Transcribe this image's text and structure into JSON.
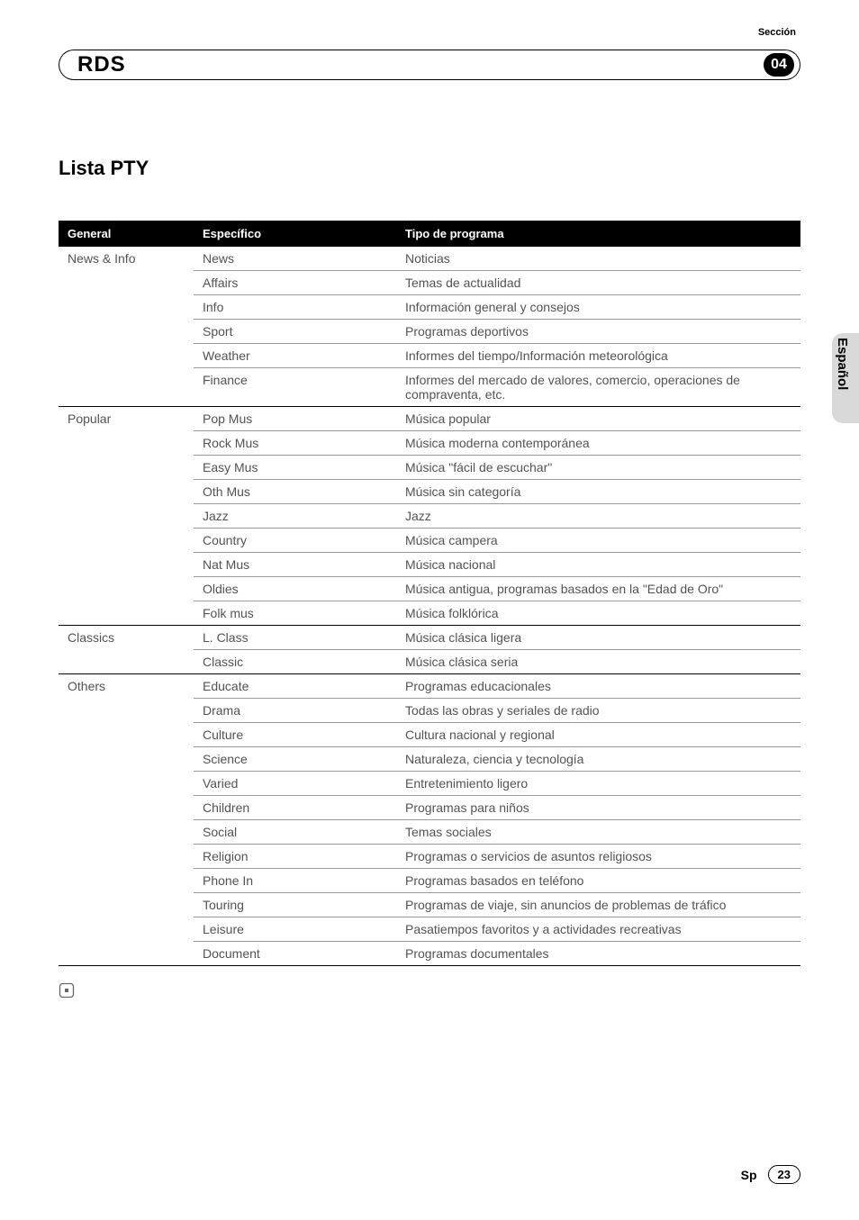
{
  "header": {
    "section_label": "Sección",
    "title": "RDS",
    "section_number": "04"
  },
  "subtitle": "Lista PTY",
  "side_language": "Español",
  "footer": {
    "lang_code": "Sp",
    "page_number": "23"
  },
  "table": {
    "columns": {
      "general": "General",
      "specific": "Específico",
      "type": "Tipo de programa"
    },
    "col_widths": {
      "general": 150,
      "specific": 225
    },
    "header_bg": "#000000",
    "header_fg": "#ffffff",
    "row_color": "#535353",
    "row_border": "#999999",
    "group_border": "#000000",
    "groups": [
      {
        "general": "News & Info",
        "rows": [
          {
            "specific": "News",
            "type": "Noticias"
          },
          {
            "specific": "Affairs",
            "type": "Temas de actualidad"
          },
          {
            "specific": "Info",
            "type": "Información general y consejos"
          },
          {
            "specific": "Sport",
            "type": "Programas deportivos"
          },
          {
            "specific": "Weather",
            "type": "Informes del tiempo/Información meteorológica"
          },
          {
            "specific": "Finance",
            "type": "Informes del mercado de valores, comercio, operaciones de compraventa, etc."
          }
        ]
      },
      {
        "general": "Popular",
        "rows": [
          {
            "specific": "Pop Mus",
            "type": "Música popular"
          },
          {
            "specific": "Rock Mus",
            "type": "Música moderna contemporánea"
          },
          {
            "specific": "Easy Mus",
            "type": "Música \"fácil de escuchar\""
          },
          {
            "specific": "Oth Mus",
            "type": "Música sin categoría"
          },
          {
            "specific": "Jazz",
            "type": "Jazz"
          },
          {
            "specific": "Country",
            "type": "Música campera"
          },
          {
            "specific": "Nat Mus",
            "type": "Música nacional"
          },
          {
            "specific": "Oldies",
            "type": "Música antigua, programas basados en la \"Edad de Oro\""
          },
          {
            "specific": "Folk mus",
            "type": "Música folklórica"
          }
        ]
      },
      {
        "general": "Classics",
        "rows": [
          {
            "specific": "L. Class",
            "type": "Música clásica ligera"
          },
          {
            "specific": "Classic",
            "type": "Música clásica seria"
          }
        ]
      },
      {
        "general": "Others",
        "rows": [
          {
            "specific": "Educate",
            "type": "Programas educacionales"
          },
          {
            "specific": "Drama",
            "type": "Todas las obras y seriales de radio"
          },
          {
            "specific": "Culture",
            "type": "Cultura nacional y regional"
          },
          {
            "specific": "Science",
            "type": "Naturaleza, ciencia y tecnología"
          },
          {
            "specific": "Varied",
            "type": "Entretenimiento ligero"
          },
          {
            "specific": "Children",
            "type": "Programas para niños"
          },
          {
            "specific": "Social",
            "type": "Temas sociales"
          },
          {
            "specific": "Religion",
            "type": "Programas o servicios de asuntos religiosos"
          },
          {
            "specific": "Phone In",
            "type": "Programas basados en teléfono"
          },
          {
            "specific": "Touring",
            "type": "Programas de viaje, sin anuncios de problemas de tráfico"
          },
          {
            "specific": "Leisure",
            "type": "Pasatiempos favoritos y a actividades recreativas"
          },
          {
            "specific": "Document",
            "type": "Programas documentales"
          }
        ]
      }
    ]
  }
}
